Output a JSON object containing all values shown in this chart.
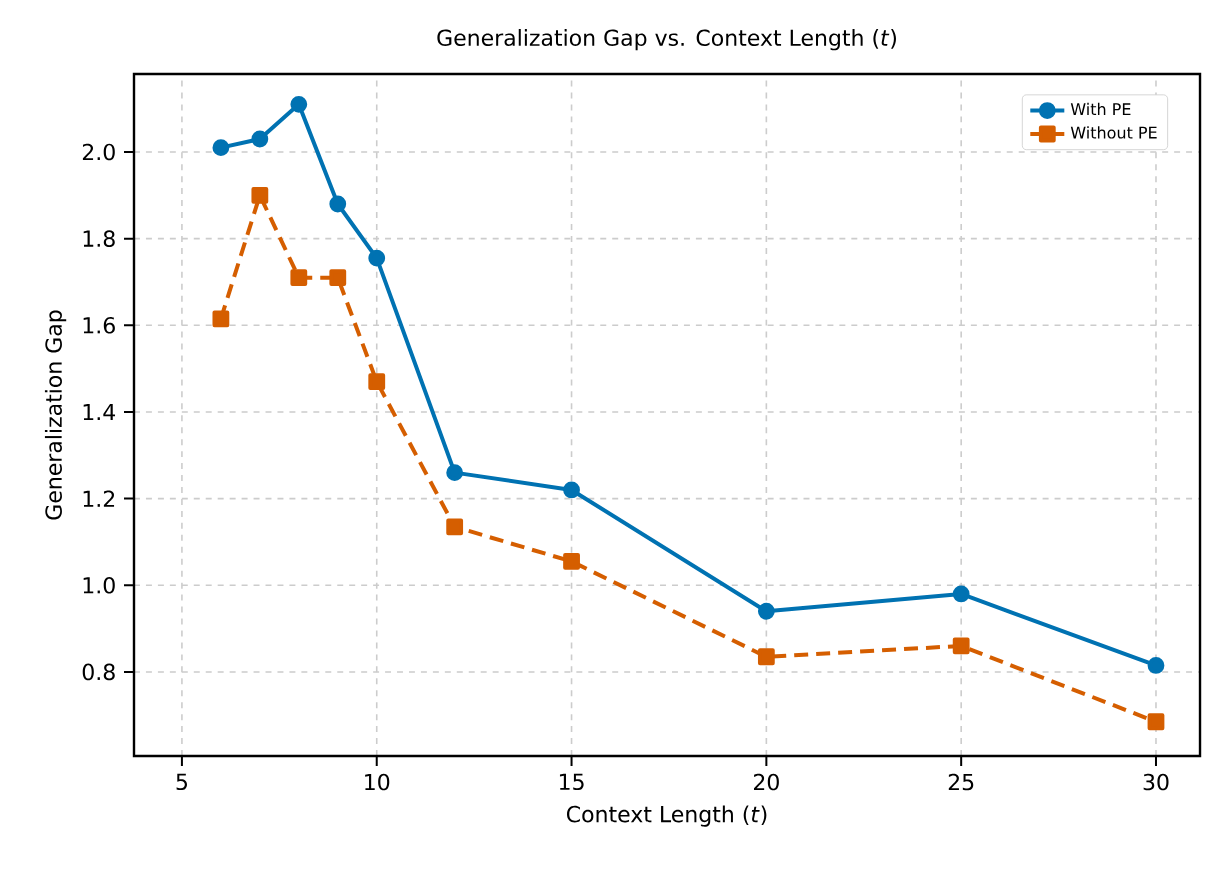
{
  "chart_data": {
    "type": "line",
    "title": "Generalization Gap vs. Context Length (*t*)",
    "xlabel": "Context Length (*t*)",
    "ylabel": "Generalization Gap",
    "x": [
      6,
      7,
      8,
      9,
      10,
      12,
      15,
      20,
      25,
      30
    ],
    "series": [
      {
        "name": "With PE",
        "color": "#0072b2",
        "marker": "circle",
        "line_style": "solid",
        "values": [
          2.01,
          2.03,
          2.11,
          1.88,
          1.755,
          1.26,
          1.22,
          0.94,
          0.98,
          0.815
        ]
      },
      {
        "name": "Without PE",
        "color": "#d55e00",
        "marker": "square",
        "line_style": "dashed",
        "values": [
          1.615,
          1.9,
          1.71,
          1.71,
          1.47,
          1.135,
          1.055,
          0.835,
          0.86,
          0.685
        ]
      }
    ],
    "xlim": [
      3.77,
      31.13
    ],
    "ylim": [
      0.606,
      2.18
    ],
    "xticks": [
      5,
      10,
      15,
      20,
      25,
      30
    ],
    "yticks": [
      {
        "value": 0.8,
        "label": "0.8"
      },
      {
        "value": 1.0,
        "label": "1.0"
      },
      {
        "value": 1.2,
        "label": "1.2"
      },
      {
        "value": 1.4,
        "label": "1.4"
      },
      {
        "value": 1.6,
        "label": "1.6"
      },
      {
        "value": 1.8,
        "label": "1.8"
      },
      {
        "value": 2.0,
        "label": "2.0"
      }
    ],
    "grid": true,
    "legend": "top right"
  }
}
